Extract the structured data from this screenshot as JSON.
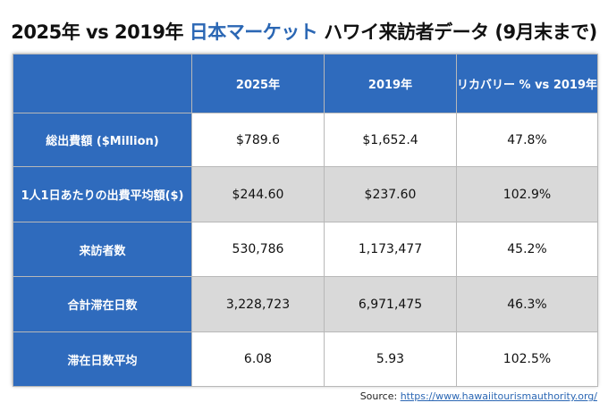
{
  "title": {
    "part1": "2025年 vs 2019年 ",
    "accent": "日本マーケット",
    "part2": " ハワイ来訪者データ (9月末まで)",
    "accent_color": "#2b67b4"
  },
  "chart_data": {
    "type": "table",
    "columns": [
      "",
      "2025年",
      "2019年",
      "リカバリー % vs 2019年"
    ],
    "rows": [
      {
        "label": "総出費額 ($Million)",
        "values": [
          "$789.6",
          "$1,652.4",
          "47.8%"
        ]
      },
      {
        "label": "1人1日あたりの出費平均額($)",
        "values": [
          "$244.60",
          "$237.60",
          "102.9%"
        ]
      },
      {
        "label": "来訪者数",
        "values": [
          "530,786",
          "1,173,477",
          "45.2%"
        ]
      },
      {
        "label": "合計滞在日数",
        "values": [
          "3,228,723",
          "6,971,475",
          "46.3%"
        ]
      },
      {
        "label": "滞在日数平均",
        "values": [
          "6.08",
          "5.93",
          "102.5%"
        ]
      }
    ],
    "header_color": "#2f6bbd",
    "stripe_color": "#d9d9d9"
  },
  "source": {
    "label": "Source: ",
    "url": "https://www.hawaiitourismauthority.org/"
  }
}
